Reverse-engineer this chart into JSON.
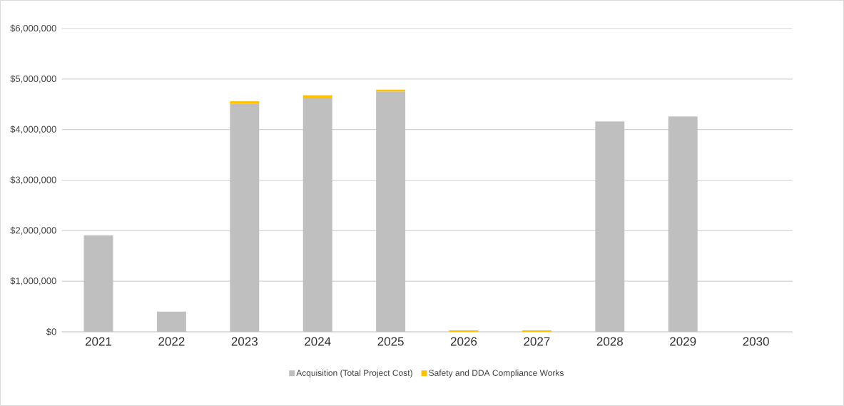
{
  "chart_data": {
    "type": "bar",
    "stacked": true,
    "categories": [
      "2021",
      "2022",
      "2023",
      "2024",
      "2025",
      "2026",
      "2027",
      "2028",
      "2029",
      "2030"
    ],
    "series": [
      {
        "name": "Acquisition (Total Project Cost)",
        "color": "#bfbfbf",
        "values": [
          1910000,
          400000,
          4510000,
          4630000,
          4750000,
          0,
          0,
          4160000,
          4260000,
          0
        ]
      },
      {
        "name": "Safety and DDA Compliance Works",
        "color": "#ffc000",
        "values": [
          0,
          0,
          50000,
          50000,
          40000,
          30000,
          30000,
          0,
          0,
          0
        ]
      }
    ],
    "ylim": [
      0,
      6000000
    ],
    "yticks": [
      {
        "value": 0,
        "label": "$0"
      },
      {
        "value": 1000000,
        "label": "$1,000,000"
      },
      {
        "value": 2000000,
        "label": "$2,000,000"
      },
      {
        "value": 3000000,
        "label": "$3,000,000"
      },
      {
        "value": 4000000,
        "label": "$4,000,000"
      },
      {
        "value": 5000000,
        "label": "$5,000,000"
      },
      {
        "value": 6000000,
        "label": "$6,000,000"
      }
    ],
    "grid": "y",
    "legend": "bottom"
  }
}
